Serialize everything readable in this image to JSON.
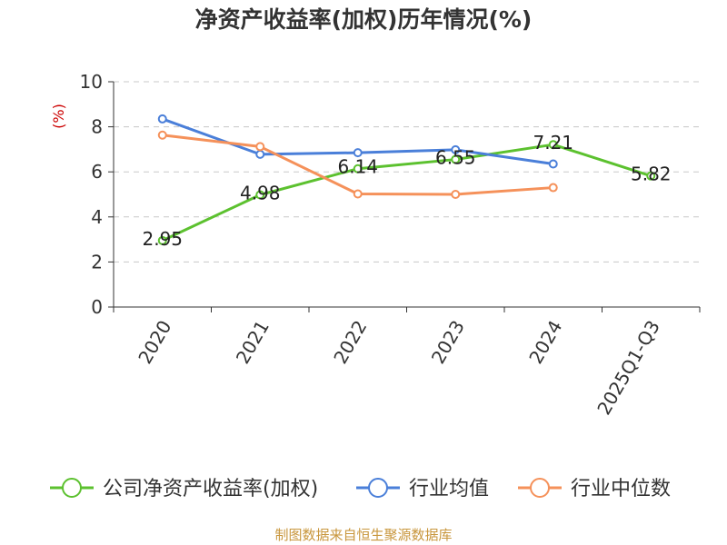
{
  "chart_data": {
    "type": "line",
    "title": "净资产收益率(加权)历年情况(%)",
    "ylabel": "(%)",
    "xlabel": "",
    "categories": [
      "2020",
      "2021",
      "2022",
      "2023",
      "2024",
      "2025Q1-Q3"
    ],
    "ylim": [
      0,
      10
    ],
    "yticks": [
      0,
      2,
      4,
      6,
      8,
      10
    ],
    "grid": true,
    "legend_position": "bottom",
    "series": [
      {
        "name": "公司净资产收益率(加权)",
        "color": "#5cc12f",
        "values": [
          2.95,
          4.98,
          6.14,
          6.55,
          7.21,
          5.82
        ],
        "labels": [
          "2.95",
          "4.98",
          "6.14",
          "6.55",
          "7.21",
          "5.82"
        ]
      },
      {
        "name": "行业均值",
        "color": "#4a7fd9",
        "values": [
          8.35,
          6.78,
          6.85,
          6.98,
          6.35,
          null
        ]
      },
      {
        "name": "行业中位数",
        "color": "#f5915a",
        "values": [
          7.63,
          7.12,
          5.02,
          5.0,
          5.3,
          null
        ]
      }
    ]
  },
  "source_note": "制图数据来自恒生聚源数据库"
}
